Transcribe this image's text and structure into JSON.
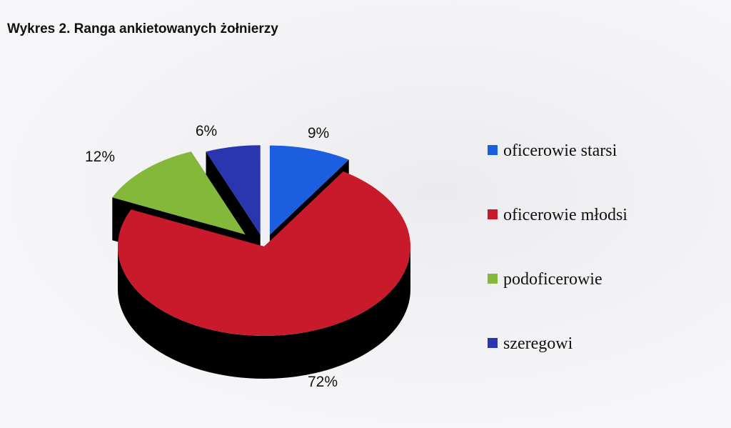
{
  "chart_data": {
    "type": "pie",
    "title": "Wykres 2. Ranga ankietowanych żołnierzy",
    "categories": [
      "oficerowie starsi",
      "oficerowie młodsi",
      "podoficerowie",
      "szeregowi"
    ],
    "values": [
      9,
      72,
      12,
      6
    ],
    "value_labels": [
      "9%",
      "72%",
      "12%",
      "6%"
    ],
    "colors": [
      "#1c5ee0",
      "#c81a2a",
      "#84b83a",
      "#2a36b0"
    ],
    "side_colors": [
      "#000000",
      "#000000",
      "#000000",
      "#000000"
    ],
    "legend": {
      "placement": "right",
      "items": [
        {
          "label": "oficerowie starsi",
          "color": "#1c5ee0"
        },
        {
          "label": "oficerowie młodsi",
          "color": "#c81a2a"
        },
        {
          "label": "podoficerowie",
          "color": "#84b83a"
        },
        {
          "label": "szeregowi",
          "color": "#2a36b0"
        }
      ]
    },
    "style": "3d-exploded"
  }
}
